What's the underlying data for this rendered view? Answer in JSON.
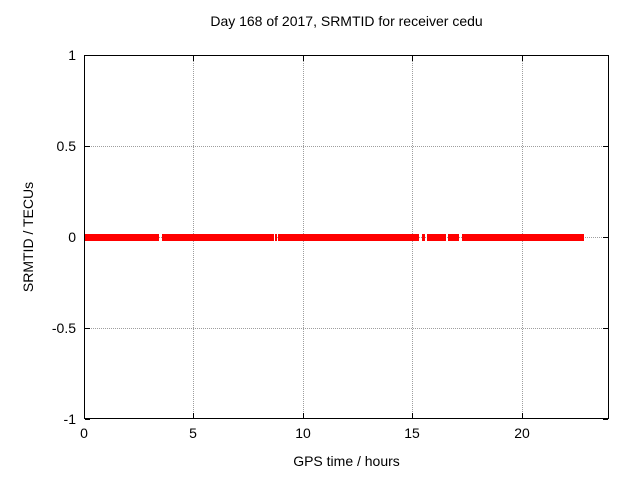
{
  "window": {
    "background": "#ffffff"
  },
  "chart_data": {
    "type": "scatter",
    "title": "Day 168 of 2017, SRMTID for receiver cedu",
    "xlabel": "GPS time / hours",
    "ylabel": "SRMTID / TECUs",
    "xlim": [
      0,
      24
    ],
    "ylim": [
      -1,
      1
    ],
    "xticks": [
      0,
      5,
      10,
      15,
      20
    ],
    "xtick_labels": [
      "0",
      "5",
      "10",
      "15",
      "20"
    ],
    "yticks": [
      -1,
      -0.5,
      0,
      0.5,
      1
    ],
    "ytick_labels": [
      "-1",
      "-0.5",
      "0",
      "0.5",
      "1"
    ],
    "grid": true,
    "legend": "none",
    "series": [
      {
        "name": "SRMTID",
        "color": "#ff0000",
        "y_value": 0,
        "marker": "dense-square-band",
        "segments_hours": [
          [
            0.05,
            3.43
          ],
          [
            3.57,
            8.69
          ],
          [
            8.75,
            8.85
          ],
          [
            8.87,
            15.31
          ],
          [
            15.44,
            15.56
          ],
          [
            15.67,
            16.55
          ],
          [
            16.64,
            17.14
          ],
          [
            17.28,
            22.86
          ]
        ]
      }
    ],
    "colors": {
      "series_red": "#ff0000",
      "axis": "#000000",
      "grid": "#9e9e9e",
      "background": "#ffffff"
    }
  }
}
